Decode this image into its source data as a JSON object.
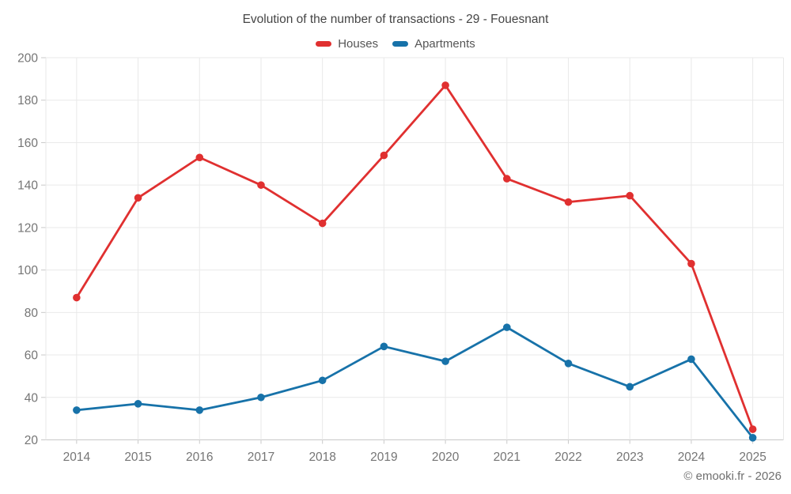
{
  "header": {
    "title": "Evolution of the number of transactions - 29 - Fouesnant"
  },
  "footer": {
    "credit": "© emooki.fr - 2026"
  },
  "colors": {
    "houses": "#e03030",
    "apartments": "#1772a9",
    "gridline": "#e9e9e9",
    "axis_line": "#c9c9c9",
    "axis_text": "#757575",
    "title_text": "#454545",
    "legend_text": "#555555",
    "footer_text": "#6f6f6f",
    "background": "#ffffff"
  },
  "chart_data": {
    "type": "line",
    "title": "Evolution of the number of transactions - 29 - Fouesnant",
    "categories": [
      "2014",
      "2015",
      "2016",
      "2017",
      "2018",
      "2019",
      "2020",
      "2021",
      "2022",
      "2023",
      "2024",
      "2025"
    ],
    "series": [
      {
        "name": "Houses",
        "color": "#e03030",
        "values": [
          87,
          134,
          153,
          140,
          122,
          154,
          187,
          143,
          132,
          135,
          103,
          25
        ]
      },
      {
        "name": "Apartments",
        "color": "#1772a9",
        "values": [
          34,
          37,
          34,
          40,
          48,
          64,
          57,
          73,
          56,
          45,
          58,
          21
        ]
      }
    ],
    "xlabel": "",
    "ylabel": "",
    "ylim": [
      20,
      200
    ],
    "yticks": [
      20,
      40,
      60,
      80,
      100,
      120,
      140,
      160,
      180,
      200
    ],
    "grid": true,
    "legend_position": "top",
    "marker": "circle"
  }
}
